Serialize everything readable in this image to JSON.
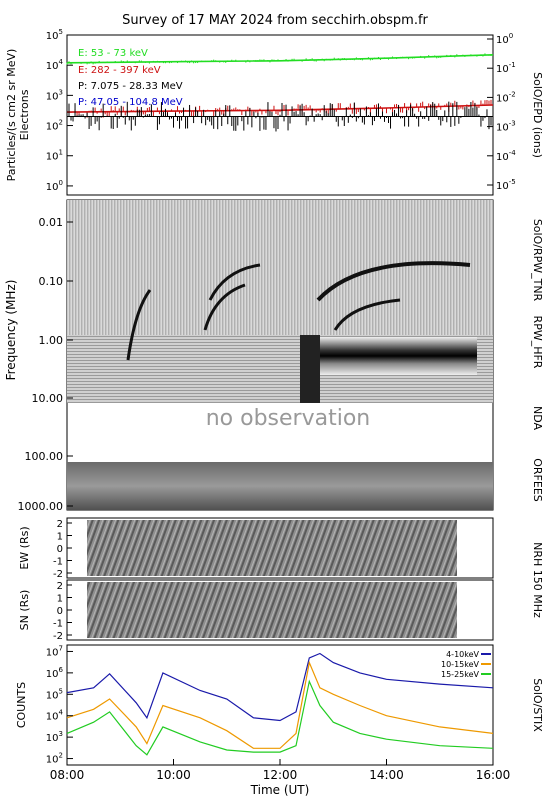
{
  "title": "Survey of 17 MAY 2024 from secchirh.obspm.fr",
  "colors": {
    "green": "#22dd22",
    "red": "#cc1111",
    "black": "#000000",
    "blue": "#0000cc",
    "stix_blue": "#1a1aaa",
    "stix_orange": "#ee9900",
    "stix_green": "#22cc22"
  },
  "chart_data": [
    {
      "type": "line",
      "panel": "SolO/EPD",
      "right_label": "SolO/EPD  (ions)",
      "ylabel": "Particles/(s cm2 sr MeV)",
      "ylabel2": "Electrons",
      "yscale": "log",
      "ylim": [
        0.5,
        100000
      ],
      "y_ticks": [
        "10^0",
        "10^1",
        "10^2",
        "10^3",
        "10^4",
        "10^5"
      ],
      "y2_ticks": [
        "10^-5",
        "10^-4",
        "10^-3",
        "10^-2",
        "10^-1",
        "10^0"
      ],
      "legend": [
        {
          "name": "E: 53 - 73 keV",
          "color": "#22dd22"
        },
        {
          "name": "E: 282 - 397 keV",
          "color": "#cc1111"
        },
        {
          "name": "P: 7.075 - 28.33 MeV",
          "color": "#000000"
        },
        {
          "name": "P: 47.05 - 104.8 MeV",
          "color": "#0000cc"
        }
      ],
      "series": [
        {
          "name": "E: 53 - 73 keV",
          "x": [
            "08:00",
            "10:00",
            "12:00",
            "14:00",
            "16:00"
          ],
          "values": [
            12000,
            13000,
            14000,
            17000,
            22000
          ]
        },
        {
          "name": "E: 282 - 397 keV",
          "x": [
            "08:00",
            "10:00",
            "12:00",
            "14:00",
            "16:00"
          ],
          "values": [
            280,
            300,
            320,
            380,
            480
          ]
        },
        {
          "name": "P: 7.075 - 28.33 MeV",
          "x": [
            "08:00",
            "10:00",
            "12:00",
            "14:00",
            "16:00"
          ],
          "values": [
            200,
            200,
            200,
            200,
            200
          ]
        }
      ]
    },
    {
      "type": "heatmap",
      "panel": "Radio spectrogram",
      "ylabel": "Frequency (MHz)",
      "y_ticks": [
        "0.01",
        "0.10",
        "1.00",
        "10.00",
        "100.00",
        "1000.00"
      ],
      "right_labels": [
        "SolO/RPW_TNR",
        "RPW_HFR",
        "NDA",
        "ORFEES"
      ],
      "annotation": "no observation"
    },
    {
      "type": "heatmap",
      "panel": "NRH EW",
      "ylabel": "EW (Rs)",
      "y_ticks": [
        "2",
        "1",
        "0",
        "-1",
        "-2"
      ]
    },
    {
      "type": "heatmap",
      "panel": "NRH SN",
      "ylabel": "SN (Rs)",
      "y_ticks": [
        "2",
        "1",
        "0",
        "-1",
        "-2"
      ],
      "right_label": "NRH 150 MHz"
    },
    {
      "type": "line",
      "panel": "SolO/STIX",
      "right_label": "SolO/STIX",
      "ylabel": "COUNTS",
      "xlabel": "Time (UT)",
      "x_ticks": [
        "08:00",
        "10:00",
        "12:00",
        "14:00",
        "16:00"
      ],
      "yscale": "log",
      "ylim": [
        50,
        20000000
      ],
      "y_ticks": [
        "10^2",
        "10^3",
        "10^4",
        "10^5",
        "10^6",
        "10^7"
      ],
      "series": [
        {
          "name": "4-10keV",
          "color": "#1a1aaa",
          "x": [
            8.0,
            8.5,
            8.8,
            9.3,
            9.5,
            9.8,
            10.5,
            11.0,
            11.5,
            12.0,
            12.3,
            12.55,
            12.75,
            13.0,
            13.5,
            14.0,
            15.0,
            16.0
          ],
          "values": [
            120000,
            200000,
            900000,
            40000,
            8000,
            1000000,
            150000,
            60000,
            8000,
            6000,
            15000,
            5000000,
            8000000,
            3000000,
            1000000,
            500000,
            300000,
            200000
          ]
        },
        {
          "name": "10-15keV",
          "color": "#ee9900",
          "x": [
            8.0,
            8.5,
            8.8,
            9.3,
            9.5,
            9.8,
            10.5,
            11.0,
            11.5,
            12.0,
            12.3,
            12.55,
            12.75,
            13.0,
            13.5,
            14.0,
            15.0,
            16.0
          ],
          "values": [
            8000,
            20000,
            60000,
            3000,
            500,
            30000,
            8000,
            2000,
            300,
            300,
            1500,
            3000000,
            200000,
            100000,
            30000,
            10000,
            3000,
            1500
          ]
        },
        {
          "name": "15-25keV",
          "color": "#22cc22",
          "x": [
            8.0,
            8.5,
            8.8,
            9.3,
            9.5,
            9.8,
            10.5,
            11.0,
            11.5,
            12.0,
            12.3,
            12.55,
            12.75,
            13.0,
            13.5,
            14.0,
            15.0,
            16.0
          ],
          "values": [
            1500,
            5000,
            15000,
            400,
            150,
            3000,
            600,
            250,
            200,
            200,
            400,
            400000,
            30000,
            5000,
            1500,
            800,
            400,
            300
          ]
        }
      ]
    }
  ]
}
